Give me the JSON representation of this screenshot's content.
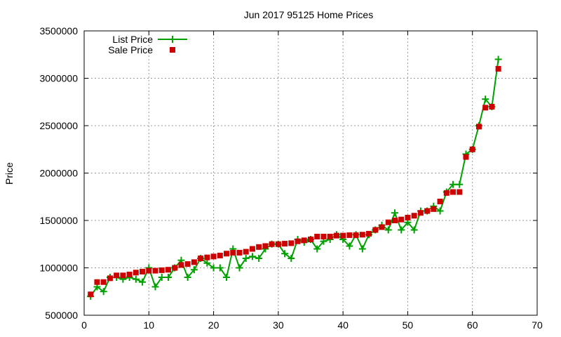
{
  "chart_data": {
    "type": "line",
    "title": "Jun 2017 95125 Home Prices",
    "xlabel": "",
    "ylabel": "Price",
    "xlim": [
      0,
      70
    ],
    "ylim": [
      500000,
      3500000
    ],
    "xticks": [
      0,
      10,
      20,
      30,
      40,
      50,
      60,
      70
    ],
    "yticks": [
      500000,
      1000000,
      1500000,
      2000000,
      2500000,
      3000000,
      3500000
    ],
    "xtick_labels": [
      "0",
      "10",
      "20",
      "30",
      "40",
      "50",
      "60",
      "70"
    ],
    "ytick_labels": [
      "500000",
      "1000000",
      "1500000",
      "2000000",
      "2500000",
      "3000000",
      "3500000"
    ],
    "grid": true,
    "legend": "top-left",
    "series": [
      {
        "name": "List Price",
        "color": "#00a000",
        "marker": "plus",
        "line": true,
        "x": [
          1,
          2,
          3,
          4,
          5,
          6,
          7,
          8,
          9,
          10,
          11,
          12,
          13,
          14,
          15,
          16,
          17,
          18,
          19,
          20,
          21,
          22,
          23,
          24,
          25,
          26,
          27,
          28,
          29,
          30,
          31,
          32,
          33,
          34,
          35,
          36,
          37,
          38,
          39,
          40,
          41,
          42,
          43,
          44,
          45,
          46,
          47,
          48,
          49,
          50,
          51,
          52,
          53,
          54,
          55,
          56,
          57,
          58,
          59,
          60,
          61,
          62,
          63,
          64
        ],
        "values": [
          700000,
          800000,
          750000,
          900000,
          900000,
          880000,
          900000,
          880000,
          850000,
          1000000,
          800000,
          900000,
          900000,
          1000000,
          1080000,
          900000,
          980000,
          1100000,
          1050000,
          1000000,
          1000000,
          900000,
          1200000,
          1000000,
          1100000,
          1120000,
          1100000,
          1200000,
          1250000,
          1250000,
          1150000,
          1100000,
          1300000,
          1270000,
          1300000,
          1200000,
          1280000,
          1300000,
          1350000,
          1300000,
          1230000,
          1350000,
          1200000,
          1350000,
          1400000,
          1450000,
          1400000,
          1580000,
          1400000,
          1480000,
          1400000,
          1600000,
          1600000,
          1650000,
          1600000,
          1800000,
          1880000,
          1880000,
          2200000,
          2250000,
          2500000,
          2780000,
          2700000,
          3200000
        ]
      },
      {
        "name": "Sale Price",
        "color": "#cc0000",
        "marker": "square",
        "line": false,
        "x": [
          1,
          2,
          3,
          4,
          5,
          6,
          7,
          8,
          9,
          10,
          11,
          12,
          13,
          14,
          15,
          16,
          17,
          18,
          19,
          20,
          21,
          22,
          23,
          24,
          25,
          26,
          27,
          28,
          29,
          30,
          31,
          32,
          33,
          34,
          35,
          36,
          37,
          38,
          39,
          40,
          41,
          42,
          43,
          44,
          45,
          46,
          47,
          48,
          49,
          50,
          51,
          52,
          53,
          54,
          55,
          56,
          57,
          58,
          59,
          60,
          61,
          62,
          63,
          64
        ],
        "values": [
          720000,
          850000,
          850000,
          890000,
          920000,
          920000,
          930000,
          950000,
          960000,
          970000,
          970000,
          975000,
          980000,
          1000000,
          1030000,
          1040000,
          1060000,
          1100000,
          1110000,
          1120000,
          1130000,
          1150000,
          1160000,
          1160000,
          1170000,
          1200000,
          1220000,
          1230000,
          1250000,
          1250000,
          1255000,
          1260000,
          1280000,
          1290000,
          1300000,
          1330000,
          1330000,
          1330000,
          1340000,
          1340000,
          1345000,
          1345000,
          1350000,
          1360000,
          1400000,
          1430000,
          1480000,
          1500000,
          1510000,
          1530000,
          1550000,
          1580000,
          1600000,
          1620000,
          1700000,
          1790000,
          1800000,
          1800000,
          2170000,
          2250000,
          2490000,
          2690000,
          2700000,
          3100000
        ]
      }
    ]
  }
}
